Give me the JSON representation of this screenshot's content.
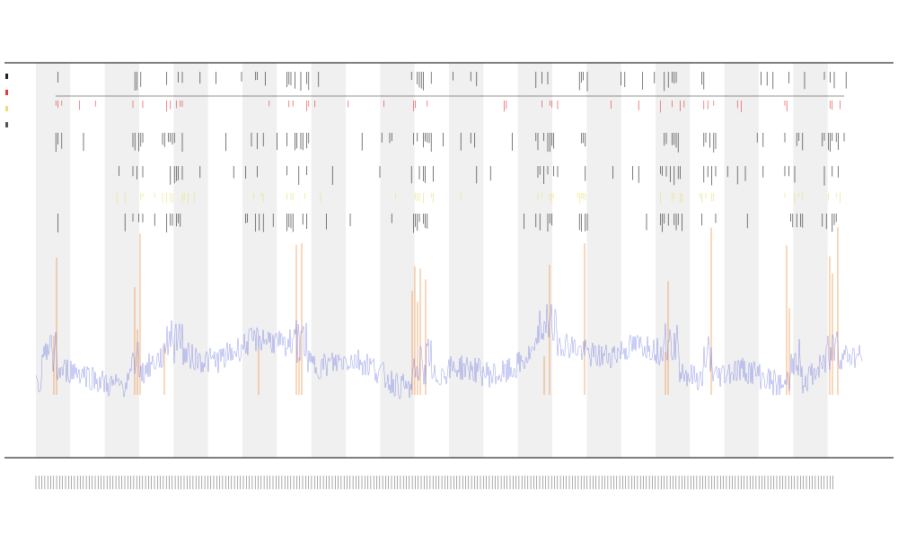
{
  "chart_data": {
    "type": "line",
    "title": "",
    "subtitle_lines": [
      "",
      ""
    ],
    "xlabel": "",
    "ylabel": "",
    "legend_placement": "top-left",
    "legend_entries": [
      "",
      "",
      "",
      ""
    ],
    "grid": false,
    "band_count": 24,
    "bands_shaded": "alternating",
    "series": [
      {
        "name": "",
        "color": "#3b45d8",
        "role": "coverage-trace"
      },
      {
        "name": "",
        "color": "#f07a1e",
        "role": "peak-spikes"
      },
      {
        "name": "",
        "color": "#222222",
        "role": "feature-ticks"
      },
      {
        "name": "",
        "color": "#e23b3b",
        "role": "feature-ticks"
      },
      {
        "name": "",
        "color": "#e8e07a",
        "role": "feature-ticks"
      }
    ],
    "note_values_unreadable": true
  },
  "colors": {
    "band": "#f0f0f0",
    "axis": "#333333",
    "trace": "#3b45d8",
    "spike": "#f07a1e",
    "tick_black": "#222222",
    "tick_red": "#e23b3b",
    "tick_yellow": "#e8e07a"
  }
}
